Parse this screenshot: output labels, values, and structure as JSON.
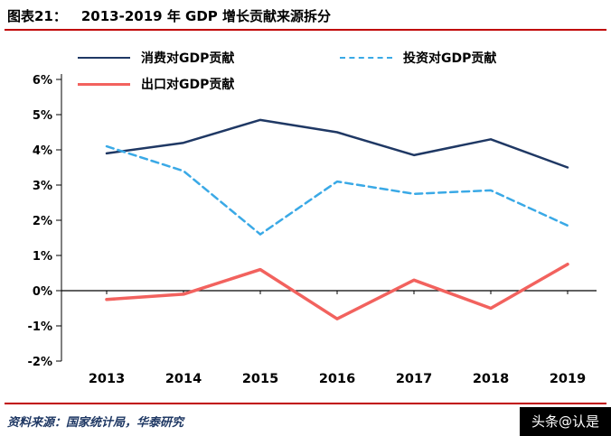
{
  "title": {
    "prefix": "图表21：",
    "text": "2013-2019 年 GDP 增长贡献来源拆分"
  },
  "chart_data": {
    "type": "line",
    "x": [
      "2013",
      "2014",
      "2015",
      "2016",
      "2017",
      "2018",
      "2019"
    ],
    "series": [
      {
        "name": "消费对GDP贡献",
        "color": "#1f3864",
        "dash": false,
        "thickness": 2.5,
        "values": [
          3.9,
          4.2,
          4.85,
          4.5,
          3.85,
          4.3,
          3.5
        ]
      },
      {
        "name": "投资对GDP贡献",
        "color": "#3aa9e6",
        "dash": true,
        "thickness": 2.5,
        "values": [
          4.1,
          3.4,
          1.6,
          3.1,
          2.75,
          2.85,
          1.85
        ]
      },
      {
        "name": "出口对GDP贡献",
        "color": "#f2625e",
        "dash": false,
        "thickness": 3.5,
        "values": [
          -0.25,
          -0.1,
          0.6,
          -0.8,
          0.3,
          -0.5,
          0.75
        ]
      }
    ],
    "ylim": [
      -2,
      6
    ],
    "yticks": [
      "6%",
      "5%",
      "4%",
      "3%",
      "2%",
      "1%",
      "0%",
      "-1%",
      "-2%"
    ],
    "legend_position": "top",
    "grid": false
  },
  "footer": {
    "source": "资料来源：国家统计局，华泰研究"
  },
  "watermark": "头条@认是",
  "colors": {
    "accent_red": "#c00000"
  }
}
